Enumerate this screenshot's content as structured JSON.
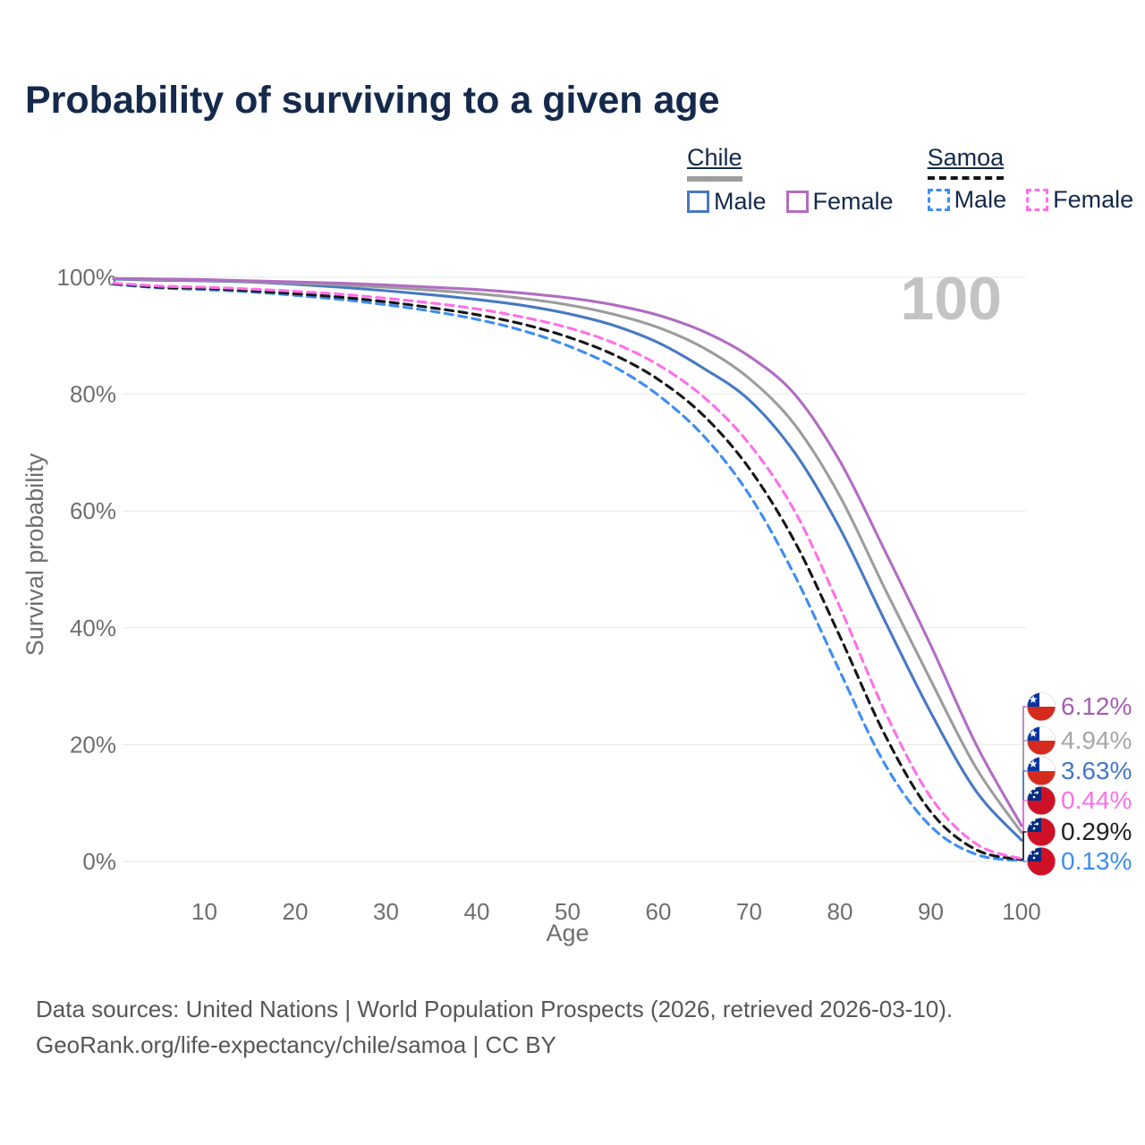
{
  "title": "Probability of surviving to a given age",
  "watermark_age": "100",
  "legend": {
    "groups": [
      {
        "label": "Chile",
        "swatch_style": "solid",
        "swatch_color": "#9c9c9c",
        "items": [
          {
            "label": "Male",
            "color": "#4779c2",
            "style": "solid"
          },
          {
            "label": "Female",
            "color": "#b16dc2",
            "style": "solid"
          }
        ]
      },
      {
        "label": "Samoa",
        "swatch_style": "dashed",
        "swatch_color": "#151515",
        "items": [
          {
            "label": "Male",
            "color": "#3d8df2",
            "style": "dashed"
          },
          {
            "label": "Female",
            "color": "#ff6fe8",
            "style": "dashed"
          }
        ]
      }
    ]
  },
  "chart_data": {
    "type": "line",
    "title": "Probability of surviving to a given age",
    "xlabel": "Age",
    "ylabel": "Survival probability",
    "xlim": [
      0,
      100
    ],
    "ylim": [
      0,
      100
    ],
    "grid": "horizontal",
    "legend_position": "top-right",
    "x_ticks": [
      10,
      20,
      30,
      40,
      50,
      60,
      70,
      80,
      90,
      100
    ],
    "y_ticks": [
      0,
      20,
      40,
      60,
      80,
      100
    ],
    "y_tick_labels": [
      "0%",
      "20%",
      "40%",
      "60%",
      "80%",
      "100%"
    ],
    "x": [
      0,
      5,
      10,
      15,
      20,
      25,
      30,
      35,
      40,
      45,
      50,
      55,
      60,
      65,
      70,
      75,
      80,
      85,
      90,
      95,
      100
    ],
    "series": [
      {
        "id": "samoa-male",
        "country": "Samoa",
        "sex": "Male",
        "name": "Samoa Male",
        "color": "#3d8df2",
        "dash": true,
        "end_label": "0.13%",
        "end_value": 0.13,
        "flag": "samoa",
        "values": [
          98.8,
          98.2,
          97.9,
          97.5,
          96.9,
          96.2,
          95.3,
          94.2,
          92.8,
          90.9,
          88.3,
          84.8,
          79.8,
          72.8,
          62.8,
          49.0,
          32.5,
          16.5,
          6.0,
          1.2,
          0.13
        ]
      },
      {
        "id": "samoa-all",
        "country": "Samoa",
        "sex": "Both",
        "name": "Samoa Both sexes",
        "color": "#151515",
        "dash": true,
        "end_label": "0.29%",
        "end_value": 0.29,
        "flag": "samoa",
        "values": [
          98.9,
          98.3,
          98.1,
          97.7,
          97.2,
          96.6,
          95.8,
          94.8,
          93.6,
          92.0,
          89.8,
          86.8,
          82.5,
          76.3,
          67.3,
          54.8,
          38.5,
          21.5,
          8.5,
          2.0,
          0.29
        ]
      },
      {
        "id": "samoa-female",
        "country": "Samoa",
        "sex": "Female",
        "name": "Samoa Female",
        "color": "#ff6fe8",
        "dash": true,
        "end_label": "0.44%",
        "end_value": 0.44,
        "flag": "samoa",
        "values": [
          99.0,
          98.5,
          98.3,
          98.0,
          97.6,
          97.1,
          96.4,
          95.6,
          94.6,
          93.2,
          91.4,
          88.8,
          85.0,
          79.5,
          71.5,
          60.0,
          43.5,
          25.5,
          11.0,
          3.0,
          0.44
        ]
      },
      {
        "id": "chile-male",
        "country": "Chile",
        "sex": "Male",
        "name": "Chile Male",
        "color": "#4779c2",
        "dash": false,
        "end_label": "3.63%",
        "end_value": 3.63,
        "flag": "chile",
        "values": [
          99.7,
          99.5,
          99.4,
          99.2,
          98.8,
          98.3,
          97.7,
          97.0,
          96.2,
          95.2,
          93.8,
          91.8,
          88.8,
          84.4,
          79.0,
          70.0,
          57.0,
          41.0,
          25.5,
          12.0,
          3.63
        ]
      },
      {
        "id": "chile-all",
        "country": "Chile",
        "sex": "Both",
        "name": "Chile Both sexes",
        "color": "#9c9c9c",
        "dash": false,
        "end_label": "4.94%",
        "end_value": 4.94,
        "flag": "chile",
        "values": [
          99.8,
          99.6,
          99.5,
          99.3,
          99.0,
          98.7,
          98.3,
          97.8,
          97.2,
          96.4,
          95.3,
          93.7,
          91.4,
          87.9,
          82.7,
          74.8,
          62.5,
          46.5,
          31.0,
          16.0,
          4.94
        ]
      },
      {
        "id": "chile-female",
        "country": "Chile",
        "sex": "Female",
        "name": "Chile Female",
        "color": "#b16dc2",
        "dash": false,
        "end_label": "6.12%",
        "end_value": 6.12,
        "flag": "chile",
        "values": [
          99.8,
          99.7,
          99.6,
          99.4,
          99.2,
          99.0,
          98.7,
          98.3,
          97.9,
          97.3,
          96.5,
          95.3,
          93.5,
          90.7,
          86.5,
          80.0,
          68.5,
          53.0,
          37.0,
          20.0,
          6.12
        ]
      }
    ],
    "end_label_colors": {
      "chile-female": "#a55fb0",
      "chile-all": "#a6a6a6",
      "chile-male": "#4477c8",
      "samoa-female": "#ff6fe8",
      "samoa-all": "#212121",
      "samoa-male": "#3d8df2"
    }
  },
  "footer": {
    "line1": "Data sources: United Nations | World Population Prospects (2026, retrieved 2026-03-10).",
    "line2": "GeoRank.org/life-expectancy/chile/samoa | CC BY"
  }
}
